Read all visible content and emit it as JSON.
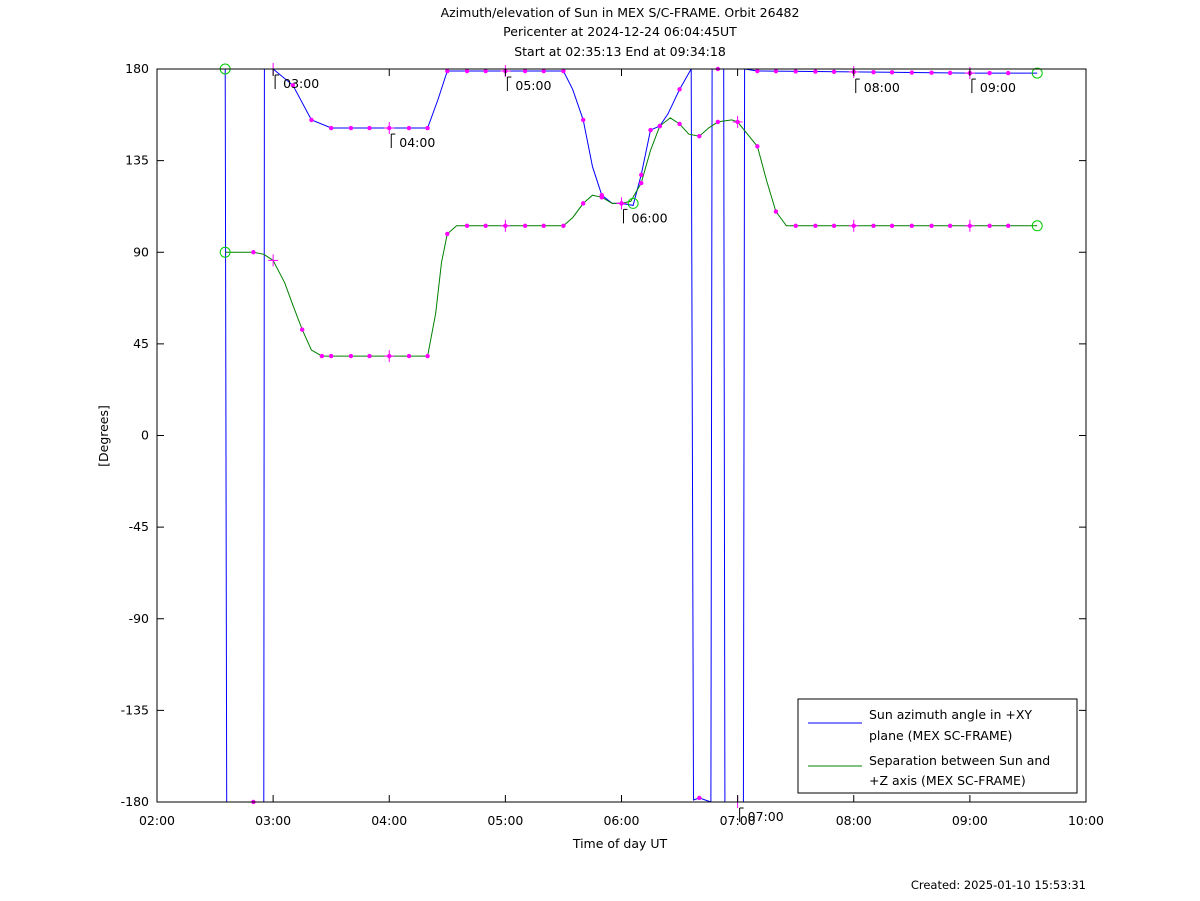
{
  "chart_data": {
    "type": "line",
    "title": [
      "Azimuth/elevation of Sun in MEX S/C-FRAME.  Orbit 26482",
      "Pericenter at 2024-12-24 06:04:45UT",
      "Start at 02:35:13 End at 09:34:18"
    ],
    "xlabel": "Time of day UT",
    "ylabel": "[Degrees]",
    "xlim": [
      2.0,
      10.0
    ],
    "ylim": [
      -180,
      180
    ],
    "x_ticks": [
      2,
      3,
      4,
      5,
      6,
      7,
      8,
      9,
      10
    ],
    "x_tick_labels": [
      "02:00",
      "03:00",
      "04:00",
      "05:00",
      "06:00",
      "07:00",
      "08:00",
      "09:00",
      "10:00"
    ],
    "y_ticks": [
      180,
      135,
      90,
      45,
      0,
      -45,
      -90,
      -135,
      -180
    ],
    "y_tick_labels": [
      "180",
      "135",
      "90",
      "45",
      "0",
      "-45",
      "-90",
      "-135",
      "-180"
    ],
    "legend_position": "bottom-right",
    "series": [
      {
        "name": "Sun azimuth angle in +XY plane (MEX SC-FRAME)",
        "legend_lines": [
          "Sun azimuth angle in +XY",
          "plane (MEX SC-FRAME)"
        ],
        "color": "#0000ff",
        "points": [
          [
            2.587,
            180
          ],
          [
            2.6,
            -180
          ],
          [
            2.92,
            -180
          ],
          [
            2.925,
            180
          ],
          [
            3.0,
            180
          ],
          [
            3.17,
            172
          ],
          [
            3.33,
            155
          ],
          [
            3.5,
            151
          ],
          [
            3.83,
            151
          ],
          [
            4.33,
            151
          ],
          [
            4.42,
            165
          ],
          [
            4.5,
            179
          ],
          [
            5.5,
            179
          ],
          [
            5.58,
            170
          ],
          [
            5.67,
            155
          ],
          [
            5.75,
            132
          ],
          [
            5.83,
            118
          ],
          [
            5.92,
            114
          ],
          [
            6.0,
            114
          ],
          [
            6.1,
            113
          ],
          [
            6.17,
            128
          ],
          [
            6.25,
            150
          ],
          [
            6.33,
            152
          ],
          [
            6.4,
            158
          ],
          [
            6.5,
            170
          ],
          [
            6.6,
            180
          ],
          [
            6.62,
            -179
          ],
          [
            6.67,
            -178
          ],
          [
            6.77,
            -180
          ],
          [
            6.78,
            180
          ],
          [
            6.88,
            180
          ],
          [
            6.89,
            -180
          ],
          [
            7.0,
            -180
          ],
          [
            7.05,
            -180
          ],
          [
            7.06,
            180
          ],
          [
            7.17,
            179
          ],
          [
            9.0,
            178
          ],
          [
            9.58,
            178
          ]
        ]
      },
      {
        "name": "Separation between Sun and +Z axis (MEX SC-FRAME)",
        "legend_lines": [
          "Separation between Sun and",
          "+Z axis (MEX SC-FRAME)"
        ],
        "color": "#008000",
        "points": [
          [
            2.587,
            90
          ],
          [
            2.83,
            90
          ],
          [
            2.92,
            89
          ],
          [
            3.0,
            86
          ],
          [
            3.1,
            75
          ],
          [
            3.17,
            64
          ],
          [
            3.25,
            52
          ],
          [
            3.33,
            42
          ],
          [
            3.42,
            39
          ],
          [
            3.5,
            39
          ],
          [
            4.33,
            39
          ],
          [
            4.4,
            60
          ],
          [
            4.45,
            85
          ],
          [
            4.5,
            99
          ],
          [
            4.58,
            103
          ],
          [
            5.0,
            103
          ],
          [
            5.5,
            103
          ],
          [
            5.58,
            107
          ],
          [
            5.67,
            114
          ],
          [
            5.75,
            118
          ],
          [
            5.83,
            117
          ],
          [
            5.92,
            114
          ],
          [
            6.0,
            114
          ],
          [
            6.08,
            115
          ],
          [
            6.17,
            124
          ],
          [
            6.25,
            140
          ],
          [
            6.33,
            152
          ],
          [
            6.42,
            156
          ],
          [
            6.5,
            153
          ],
          [
            6.58,
            148
          ],
          [
            6.67,
            147
          ],
          [
            6.75,
            151
          ],
          [
            6.83,
            154
          ],
          [
            6.95,
            155
          ],
          [
            7.0,
            154
          ],
          [
            7.17,
            142
          ],
          [
            7.25,
            125
          ],
          [
            7.33,
            110
          ],
          [
            7.42,
            103
          ],
          [
            8.0,
            103
          ],
          [
            9.0,
            103
          ],
          [
            9.58,
            103
          ]
        ]
      }
    ],
    "markers": {
      "azimuth_x": [
        2.83,
        3.17,
        3.33,
        3.5,
        3.67,
        3.83,
        4.0,
        4.17,
        4.33,
        4.5,
        4.67,
        4.83,
        5.0,
        5.17,
        5.33,
        5.5,
        5.67,
        5.83,
        6.0,
        6.17,
        6.25,
        6.33,
        6.5,
        6.67,
        6.83,
        7.17,
        7.33,
        7.5,
        7.67,
        7.83,
        8.0,
        8.17,
        8.33,
        8.5,
        8.67,
        8.83,
        9.0,
        9.17,
        9.33
      ],
      "separation_x": [
        2.83,
        3.25,
        3.42,
        3.5,
        3.67,
        3.83,
        4.0,
        4.17,
        4.33,
        4.5,
        4.67,
        4.83,
        5.0,
        5.17,
        5.33,
        5.5,
        5.67,
        5.83,
        6.0,
        6.17,
        6.33,
        6.5,
        6.67,
        6.83,
        7.0,
        7.17,
        7.33,
        7.5,
        7.67,
        7.83,
        8.0,
        8.17,
        8.33,
        8.5,
        8.67,
        8.83,
        9.0,
        9.17,
        9.33
      ],
      "circles": [
        [
          2.587,
          180
        ],
        [
          2.587,
          90
        ],
        [
          9.58,
          178
        ],
        [
          9.58,
          103
        ],
        [
          6.1,
          114
        ]
      ]
    },
    "hour_annotations": [
      {
        "label": "03:00",
        "x": 3.0,
        "y": 180
      },
      {
        "label": "04:00",
        "x": 4.0,
        "y": 151
      },
      {
        "label": "05:00",
        "x": 5.0,
        "y": 179
      },
      {
        "label": "06:00",
        "x": 6.0,
        "y": 114
      },
      {
        "label": "07:00",
        "x": 7.0,
        "y": -180
      },
      {
        "label": "08:00",
        "x": 8.0,
        "y": 178
      },
      {
        "label": "09:00",
        "x": 9.0,
        "y": 178
      }
    ],
    "footer": "Created: 2025-01-10 15:53:31"
  }
}
